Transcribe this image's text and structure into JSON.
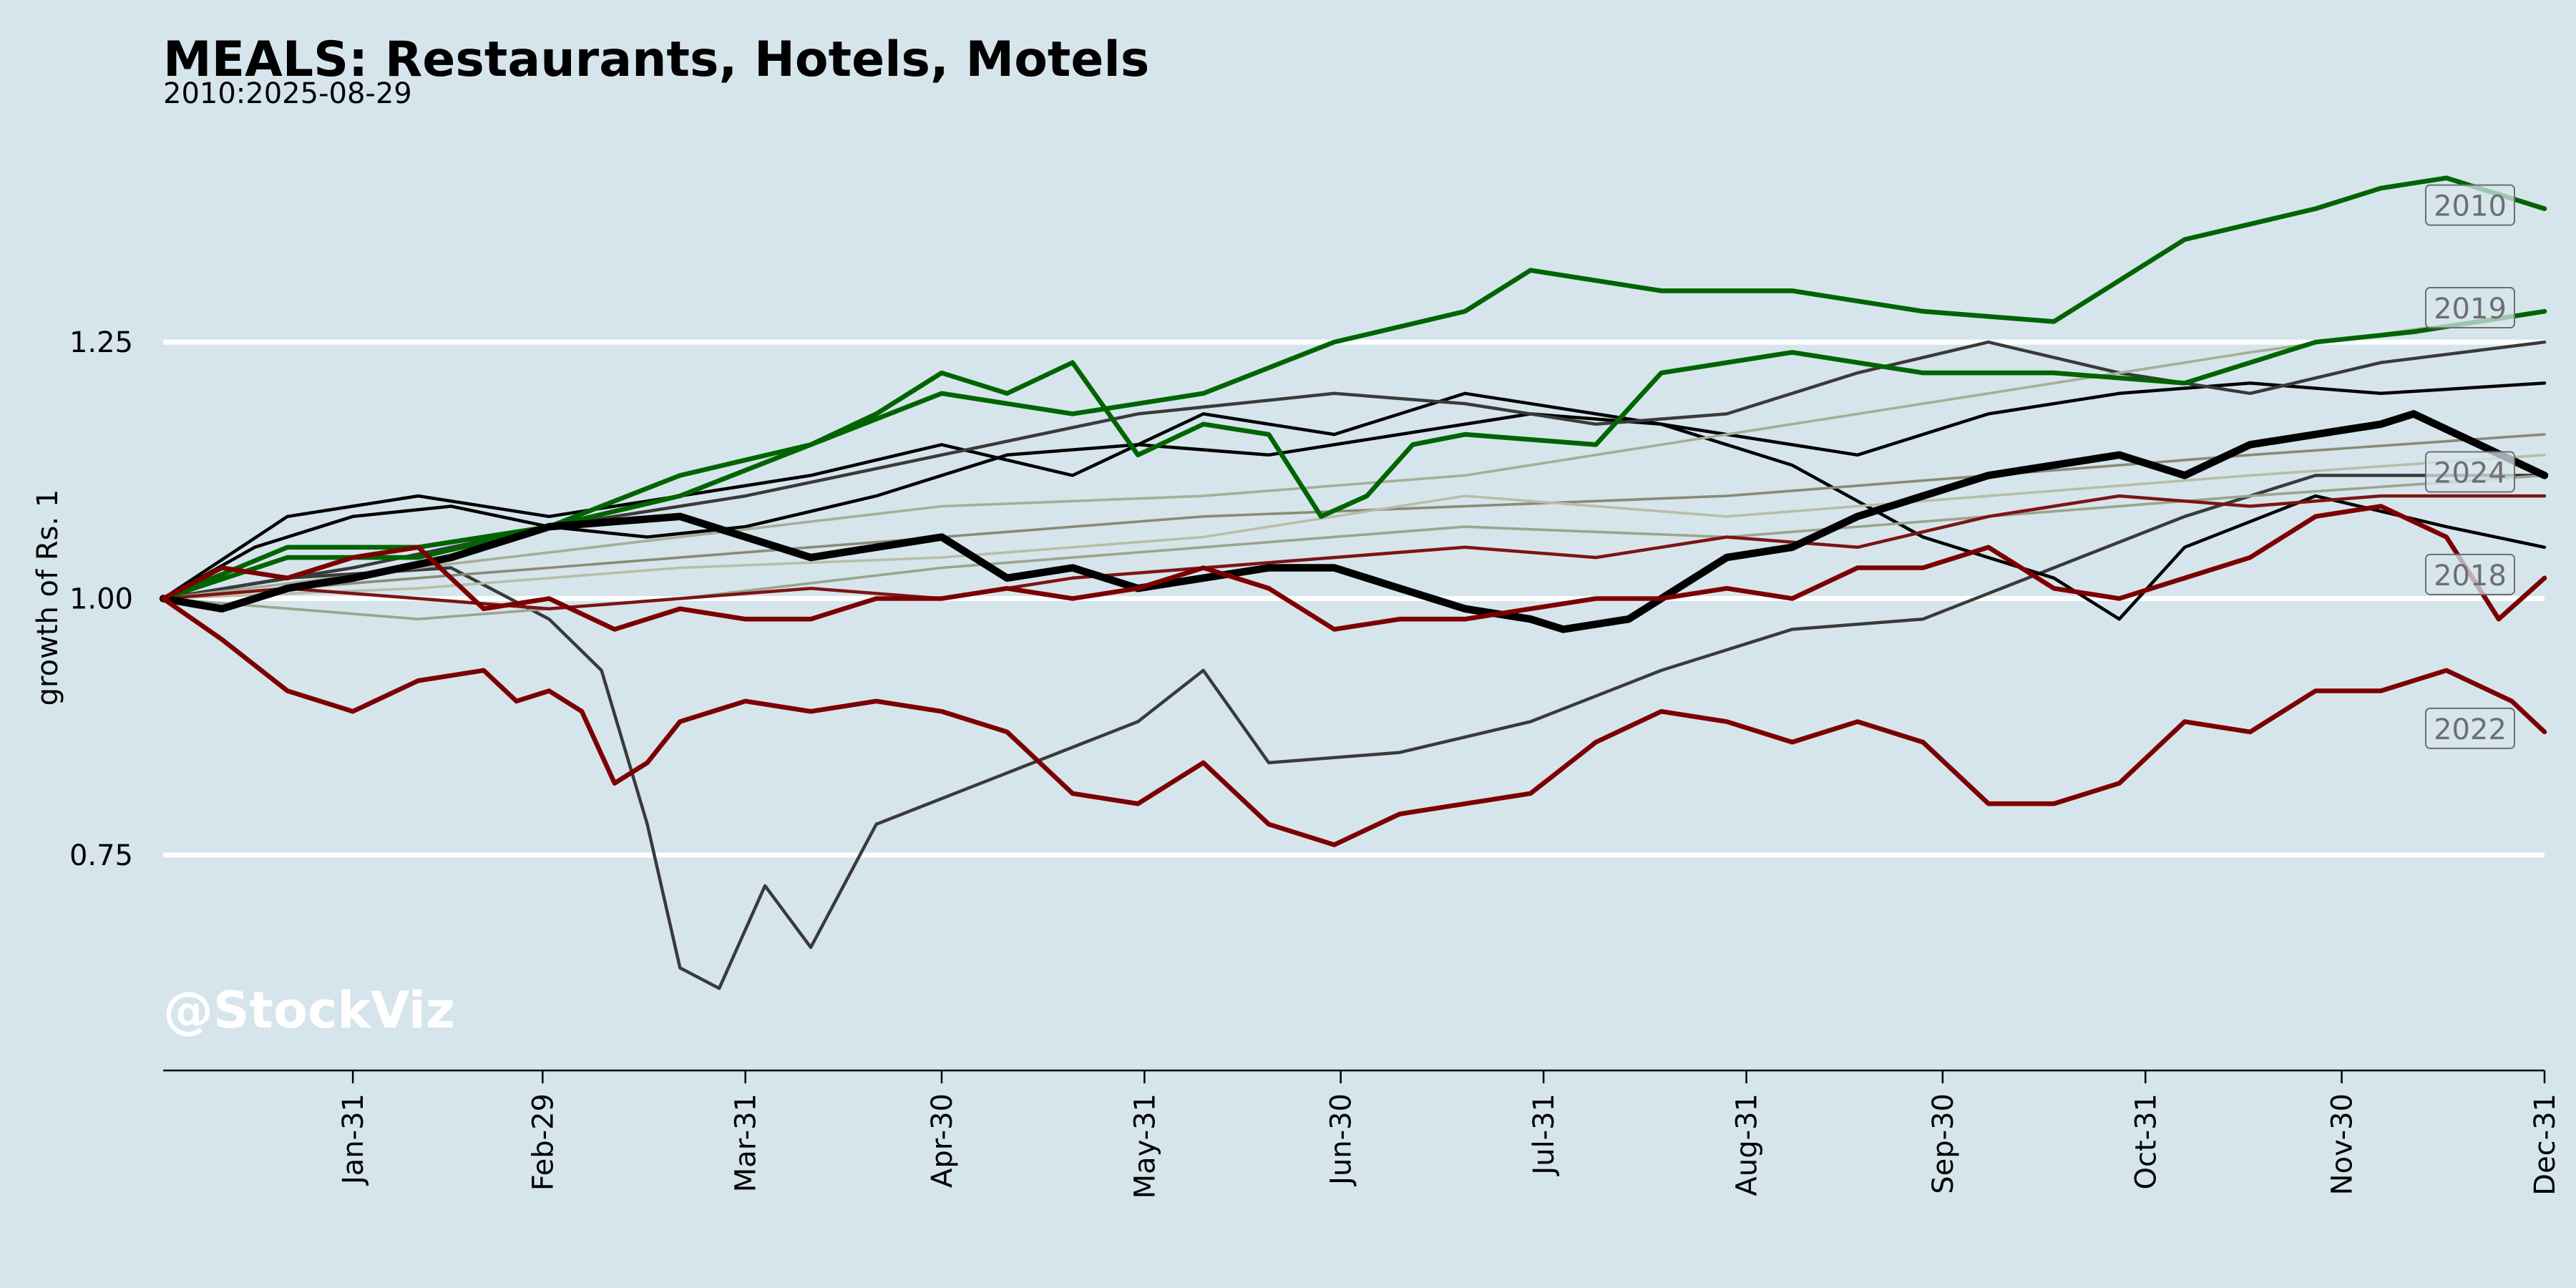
{
  "chart_data": {
    "type": "line",
    "title": "MEALS: Restaurants, Hotels, Motels",
    "subtitle": "2010:2025-08-29",
    "xlabel": "",
    "ylabel": "growth of Rs. 1",
    "x_tick_labels": [
      "Jan-31",
      "Feb-29",
      "Mar-31",
      "Apr-30",
      "May-31",
      "Jun-30",
      "Jul-31",
      "Aug-31",
      "Sep-30",
      "Oct-31",
      "Nov-30",
      "Dec-31"
    ],
    "x_tick_days": [
      30,
      59,
      90,
      120,
      151,
      181,
      212,
      243,
      273,
      304,
      334,
      365
    ],
    "x_range_days": [
      1,
      365
    ],
    "y_ticks": [
      0.75,
      1.0,
      1.25
    ],
    "y_tick_labels": [
      "0.75",
      "1.00",
      "1.25"
    ],
    "ylim": [
      0.54,
      1.43
    ],
    "grid": "horizontal at y ticks",
    "watermark": "@StockViz",
    "series": [
      {
        "name": "",
        "color": "#3a3a3a",
        "width": 1.5,
        "x": [
          1,
          20,
          45,
          60,
          68,
          75,
          80,
          86,
          93,
          100,
          110,
          130,
          150,
          160,
          170,
          190,
          210,
          230,
          250,
          270,
          290,
          310,
          330,
          350,
          365
        ],
        "y": [
          1.0,
          1.02,
          1.03,
          0.98,
          0.93,
          0.78,
          0.64,
          0.62,
          0.72,
          0.66,
          0.78,
          0.83,
          0.88,
          0.93,
          0.84,
          0.85,
          0.88,
          0.93,
          0.97,
          0.98,
          1.03,
          1.08,
          1.12,
          1.12,
          1.12
        ]
      },
      {
        "name": "",
        "color": "#000000",
        "width": 1.5,
        "x": [
          1,
          15,
          30,
          45,
          60,
          75,
          90,
          110,
          130,
          150,
          170,
          190,
          210,
          230,
          250,
          270,
          290,
          300,
          310,
          330,
          350,
          365
        ],
        "y": [
          1.0,
          1.05,
          1.08,
          1.09,
          1.07,
          1.06,
          1.07,
          1.1,
          1.14,
          1.15,
          1.14,
          1.16,
          1.18,
          1.17,
          1.13,
          1.06,
          1.02,
          0.98,
          1.05,
          1.1,
          1.07,
          1.05
        ]
      },
      {
        "name": "",
        "color": "#000000",
        "width": 1.5,
        "x": [
          1,
          20,
          40,
          60,
          80,
          100,
          120,
          140,
          160,
          180,
          200,
          220,
          240,
          260,
          280,
          300,
          320,
          340,
          365
        ],
        "y": [
          1.0,
          1.08,
          1.1,
          1.08,
          1.1,
          1.12,
          1.15,
          1.12,
          1.18,
          1.16,
          1.2,
          1.18,
          1.16,
          1.14,
          1.18,
          1.2,
          1.21,
          1.2,
          1.21
        ]
      },
      {
        "name": "",
        "color": "#3a3a3a",
        "width": 1.5,
        "x": [
          1,
          30,
          60,
          90,
          120,
          150,
          180,
          200,
          220,
          240,
          260,
          280,
          300,
          320,
          340,
          365
        ],
        "y": [
          1.0,
          1.03,
          1.07,
          1.1,
          1.14,
          1.18,
          1.2,
          1.19,
          1.17,
          1.18,
          1.22,
          1.25,
          1.22,
          1.2,
          1.23,
          1.25
        ]
      },
      {
        "name": "",
        "color": "#8a8a78",
        "width": 1.2,
        "x": [
          1,
          40,
          80,
          120,
          160,
          200,
          240,
          280,
          320,
          365
        ],
        "y": [
          1.0,
          1.02,
          1.04,
          1.06,
          1.08,
          1.09,
          1.1,
          1.12,
          1.14,
          1.16
        ]
      },
      {
        "name": "",
        "color": "#a6ad98",
        "width": 1.2,
        "x": [
          1,
          40,
          80,
          120,
          160,
          200,
          240,
          280,
          320,
          365
        ],
        "y": [
          1.0,
          1.03,
          1.06,
          1.09,
          1.1,
          1.12,
          1.16,
          1.2,
          1.24,
          1.28
        ]
      },
      {
        "name": "",
        "color": "#9ba48d",
        "width": 1.2,
        "x": [
          1,
          40,
          80,
          120,
          160,
          200,
          240,
          280,
          320,
          365
        ],
        "y": [
          1.0,
          0.98,
          1.0,
          1.03,
          1.05,
          1.07,
          1.06,
          1.08,
          1.1,
          1.12
        ]
      },
      {
        "name": "",
        "color": "#b8bda8",
        "width": 1.2,
        "x": [
          1,
          40,
          80,
          120,
          160,
          200,
          240,
          280,
          320,
          365
        ],
        "y": [
          1.0,
          1.01,
          1.03,
          1.04,
          1.06,
          1.1,
          1.08,
          1.1,
          1.12,
          1.14
        ]
      },
      {
        "name": "",
        "color": "#7c1414",
        "width": 1.5,
        "x": [
          1,
          20,
          40,
          60,
          80,
          100,
          120,
          140,
          160,
          180,
          200,
          220,
          240,
          260,
          280,
          300,
          320,
          340,
          365
        ],
        "y": [
          1.0,
          1.01,
          1.0,
          0.99,
          1.0,
          1.01,
          1.0,
          1.02,
          1.03,
          1.04,
          1.05,
          1.04,
          1.06,
          1.05,
          1.08,
          1.1,
          1.09,
          1.1,
          1.1
        ]
      },
      {
        "name": "2010",
        "color": "#006400",
        "width": 2.2,
        "x": [
          1,
          20,
          40,
          60,
          80,
          100,
          120,
          140,
          160,
          180,
          200,
          210,
          230,
          250,
          270,
          290,
          310,
          330,
          340,
          350,
          365
        ],
        "y": [
          1.0,
          1.05,
          1.05,
          1.07,
          1.12,
          1.15,
          1.2,
          1.18,
          1.2,
          1.25,
          1.28,
          1.32,
          1.3,
          1.3,
          1.28,
          1.27,
          1.35,
          1.38,
          1.4,
          1.41,
          1.38
        ]
      },
      {
        "name": "2019",
        "color": "#006400",
        "width": 2.2,
        "x": [
          1,
          20,
          40,
          60,
          80,
          100,
          110,
          120,
          130,
          140,
          150,
          160,
          170,
          178,
          185,
          192,
          200,
          220,
          230,
          250,
          270,
          290,
          310,
          330,
          345,
          365
        ],
        "y": [
          1.0,
          1.04,
          1.04,
          1.07,
          1.1,
          1.15,
          1.18,
          1.22,
          1.2,
          1.23,
          1.14,
          1.17,
          1.16,
          1.08,
          1.1,
          1.15,
          1.16,
          1.15,
          1.22,
          1.24,
          1.22,
          1.22,
          1.21,
          1.25,
          1.26,
          1.28
        ]
      },
      {
        "name": "2024",
        "color": "#000000",
        "width": 3.5,
        "x": [
          1,
          10,
          20,
          30,
          45,
          60,
          80,
          95,
          100,
          110,
          120,
          130,
          140,
          150,
          160,
          170,
          180,
          190,
          200,
          210,
          215,
          225,
          240,
          250,
          260,
          270,
          280,
          290,
          300,
          310,
          320,
          330,
          340,
          345,
          355,
          365
        ],
        "y": [
          1.0,
          0.99,
          1.01,
          1.02,
          1.04,
          1.07,
          1.08,
          1.05,
          1.04,
          1.05,
          1.06,
          1.02,
          1.03,
          1.01,
          1.02,
          1.03,
          1.03,
          1.01,
          0.99,
          0.98,
          0.97,
          0.98,
          1.04,
          1.05,
          1.08,
          1.1,
          1.12,
          1.13,
          1.14,
          1.12,
          1.15,
          1.16,
          1.17,
          1.18,
          1.15,
          1.12
        ]
      },
      {
        "name": "2018",
        "color": "#7c0000",
        "width": 2.2,
        "x": [
          1,
          10,
          20,
          30,
          40,
          50,
          60,
          70,
          80,
          90,
          100,
          110,
          120,
          130,
          140,
          150,
          160,
          170,
          180,
          190,
          200,
          210,
          220,
          230,
          240,
          250,
          260,
          270,
          280,
          290,
          300,
          310,
          320,
          330,
          340,
          350,
          358,
          365
        ],
        "y": [
          1.0,
          1.03,
          1.02,
          1.04,
          1.05,
          0.99,
          1.0,
          0.97,
          0.99,
          0.98,
          0.98,
          1.0,
          1.0,
          1.01,
          1.0,
          1.01,
          1.03,
          1.01,
          0.97,
          0.98,
          0.98,
          0.99,
          1.0,
          1.0,
          1.01,
          1.0,
          1.03,
          1.03,
          1.05,
          1.01,
          1.0,
          1.02,
          1.04,
          1.08,
          1.09,
          1.06,
          0.98,
          1.02
        ]
      },
      {
        "name": "2022",
        "color": "#7c0000",
        "width": 2.2,
        "x": [
          1,
          10,
          20,
          30,
          40,
          50,
          55,
          60,
          65,
          70,
          75,
          80,
          85,
          90,
          100,
          110,
          120,
          130,
          140,
          150,
          160,
          170,
          180,
          190,
          200,
          210,
          220,
          230,
          240,
          250,
          260,
          270,
          280,
          290,
          300,
          310,
          320,
          330,
          340,
          350,
          360,
          365
        ],
        "y": [
          1.0,
          0.96,
          0.91,
          0.89,
          0.92,
          0.93,
          0.9,
          0.91,
          0.89,
          0.82,
          0.84,
          0.88,
          0.89,
          0.9,
          0.89,
          0.9,
          0.89,
          0.87,
          0.81,
          0.8,
          0.84,
          0.78,
          0.76,
          0.79,
          0.8,
          0.81,
          0.86,
          0.89,
          0.88,
          0.86,
          0.88,
          0.86,
          0.8,
          0.8,
          0.82,
          0.88,
          0.87,
          0.91,
          0.91,
          0.93,
          0.9,
          0.87
        ]
      }
    ]
  }
}
